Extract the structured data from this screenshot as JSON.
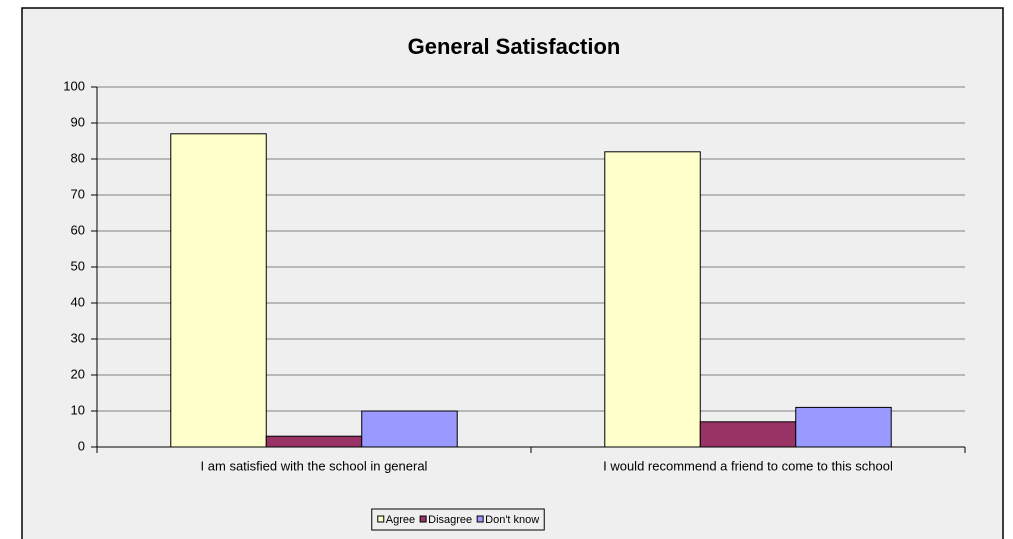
{
  "chart_data": {
    "type": "bar",
    "title": "General Satisfaction",
    "categories": [
      "I am satisfied with the school in general",
      "I would recommend a friend to come to this school"
    ],
    "series": [
      {
        "name": "Agree",
        "color": "#ffffcc",
        "values": [
          87,
          82
        ]
      },
      {
        "name": "Disagree",
        "color": "#993366",
        "values": [
          3,
          7
        ]
      },
      {
        "name": "Don't know",
        "color": "#9999ff",
        "values": [
          10,
          11
        ]
      }
    ],
    "ylim": [
      0,
      100
    ],
    "yticks": [
      0,
      10,
      20,
      30,
      40,
      50,
      60,
      70,
      80,
      90,
      100
    ],
    "grid": true,
    "legend": "bottom"
  }
}
